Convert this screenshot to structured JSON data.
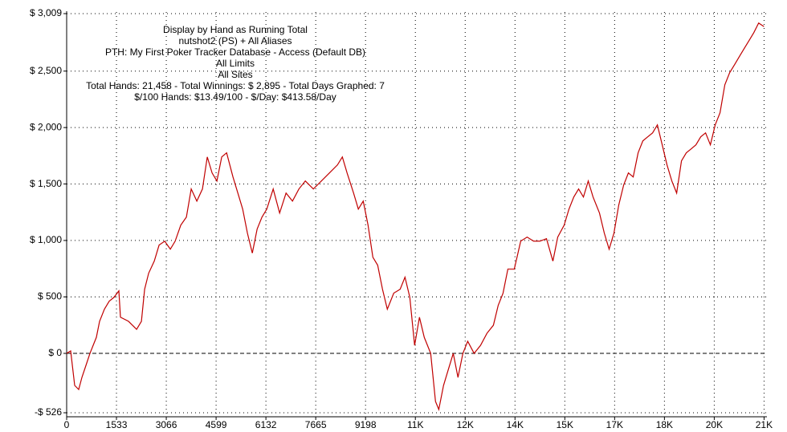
{
  "chart_data": {
    "type": "line",
    "annotations": [
      "Display by Hand as Running Total",
      "nutshot2 (PS) + All Aliases",
      "PTH: My First Poker Tracker Database - Access (Default DB)",
      "All Limits",
      "All Sites",
      "Total Hands: 21,458 - Total Winnings: $ 2,895 - Total Days Graphed: 7",
      "$/100 Hands: $13.49/100 - $/Day: $413.58/Day"
    ],
    "color": "#c00000",
    "grid": true,
    "xlim": [
      0,
      21550
    ],
    "ylim": [
      -526,
      3009
    ],
    "xticks": [
      0,
      1533,
      3066,
      4599,
      6132,
      7665,
      9198,
      {
        "value": 10731,
        "label": "11K"
      },
      {
        "value": 12264,
        "label": "12K"
      },
      {
        "value": 13797,
        "label": "14K"
      },
      {
        "value": 15330,
        "label": "15K"
      },
      {
        "value": 16863,
        "label": "17K"
      },
      {
        "value": 18396,
        "label": "18K"
      },
      {
        "value": 19929,
        "label": "20K"
      },
      {
        "value": 21462,
        "label": "21K"
      }
    ],
    "yticks": [
      {
        "value": -526,
        "label": "-$ 526"
      },
      {
        "value": 0,
        "label": "$ 0"
      },
      {
        "value": 500,
        "label": "$ 500"
      },
      {
        "value": 1000,
        "label": "$ 1,000"
      },
      {
        "value": 1500,
        "label": "$ 1,500"
      },
      {
        "value": 2000,
        "label": "$ 2,000"
      },
      {
        "value": 2500,
        "label": "$ 2,500"
      },
      {
        "value": 3009,
        "label": "$ 3,009"
      }
    ],
    "x": [
      0,
      124,
      247,
      371,
      470,
      593,
      717,
      816,
      915,
      1014,
      1162,
      1311,
      1459,
      1607,
      1657,
      1904,
      2152,
      2300,
      2399,
      2522,
      2695,
      2844,
      3017,
      3190,
      3339,
      3512,
      3685,
      3833,
      4006,
      4179,
      4328,
      4476,
      4625,
      4773,
      4922,
      5119,
      5268,
      5416,
      5564,
      5713,
      5861,
      6010,
      6158,
      6356,
      6554,
      6751,
      6949,
      7147,
      7345,
      7592,
      7839,
      8087,
      8334,
      8483,
      8631,
      8829,
      8977,
      9126,
      9274,
      9423,
      9571,
      9720,
      9868,
      10066,
      10264,
      10412,
      10560,
      10709,
      10857,
      11005,
      11203,
      11352,
      11451,
      11599,
      11747,
      11896,
      12044,
      12193,
      12341,
      12539,
      12737,
      12935,
      13133,
      13280,
      13429,
      13577,
      13775,
      13973,
      14171,
      14369,
      14567,
      14765,
      14963,
      15111,
      15309,
      15458,
      15606,
      15754,
      15903,
      16051,
      16200,
      16398,
      16546,
      16694,
      16843,
      16991,
      17140,
      17288,
      17436,
      17585,
      17733,
      17882,
      18030,
      18178,
      18327,
      18475,
      18624,
      18772,
      18920,
      19069,
      19217,
      19366,
      19514,
      19662,
      19811,
      19959,
      20107,
      20256,
      20404,
      20553,
      20701,
      20849,
      20998,
      21146,
      21295,
      21458
    ],
    "values": [
      0,
      21,
      -284,
      -320,
      -213,
      -107,
      0,
      71,
      142,
      284,
      391,
      462,
      497,
      554,
      320,
      284,
      213,
      284,
      568,
      710,
      817,
      959,
      994,
      923,
      994,
      1136,
      1207,
      1456,
      1349,
      1456,
      1740,
      1598,
      1527,
      1740,
      1776,
      1562,
      1420,
      1278,
      1065,
      888,
      1101,
      1207,
      1278,
      1456,
      1243,
      1420,
      1349,
      1456,
      1527,
      1456,
      1527,
      1598,
      1669,
      1740,
      1598,
      1420,
      1278,
      1349,
      1136,
      852,
      781,
      568,
      391,
      533,
      568,
      675,
      497,
      71,
      320,
      142,
      0,
      -426,
      -497,
      -284,
      -142,
      0,
      -213,
      0,
      107,
      0,
      71,
      178,
      249,
      426,
      533,
      746,
      746,
      994,
      1030,
      994,
      994,
      1016,
      817,
      1030,
      1136,
      1278,
      1385,
      1456,
      1385,
      1527,
      1385,
      1243,
      1065,
      923,
      1065,
      1314,
      1491,
      1598,
      1562,
      1776,
      1882,
      1918,
      1953,
      2024,
      1847,
      1669,
      1527,
      1420,
      1705,
      1776,
      1811,
      1847,
      1918,
      1953,
      1847,
      2024,
      2131,
      2379,
      2486,
      2557,
      2628,
      2699,
      2770,
      2841,
      2926,
      2895
    ]
  }
}
